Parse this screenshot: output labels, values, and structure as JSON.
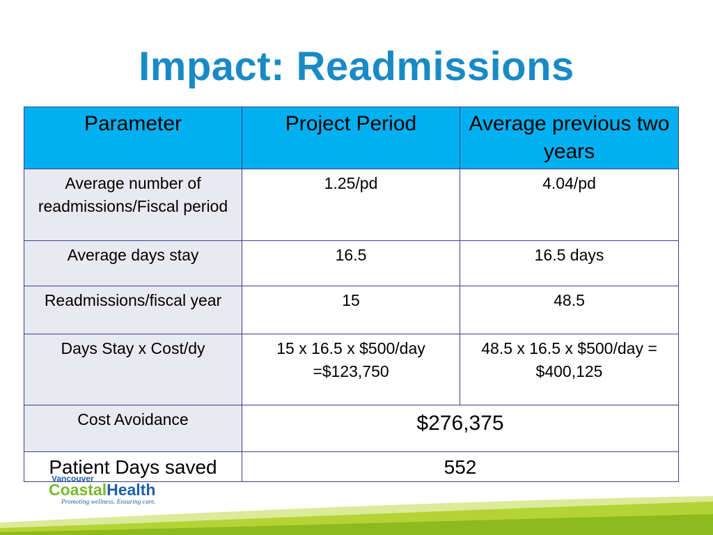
{
  "slide": {
    "title": "Impact: Readmissions"
  },
  "table": {
    "headers": [
      "Parameter",
      "Project Period",
      "Average previous two years"
    ],
    "rows": [
      {
        "parameter": "Average number of readmissions/Fiscal period",
        "project": "1.25/pd",
        "previous": "4.04/pd"
      },
      {
        "parameter": "Average days stay",
        "project": "16.5",
        "previous": "16.5 days"
      },
      {
        "parameter": "Readmissions/fiscal year",
        "project": "15",
        "previous": "48.5"
      },
      {
        "parameter": "Days Stay x Cost/dy",
        "project": "15 x 16.5 x $500/day =$123,750",
        "previous": "48.5 x 16.5 x $500/day =\n$400,125"
      },
      {
        "parameter": "Cost Avoidance",
        "merged": "$276,375"
      },
      {
        "parameter": "Patient Days saved",
        "merged": "552"
      }
    ]
  },
  "logo": {
    "top_text": "Vancouver",
    "coastal": "Coastal",
    "health": "Health",
    "tagline": "Promoting wellness. Ensuring care."
  },
  "colors": {
    "title": "#1a8ac6",
    "header_bg": "#00b0f0",
    "wave_green": "#b5d334"
  }
}
